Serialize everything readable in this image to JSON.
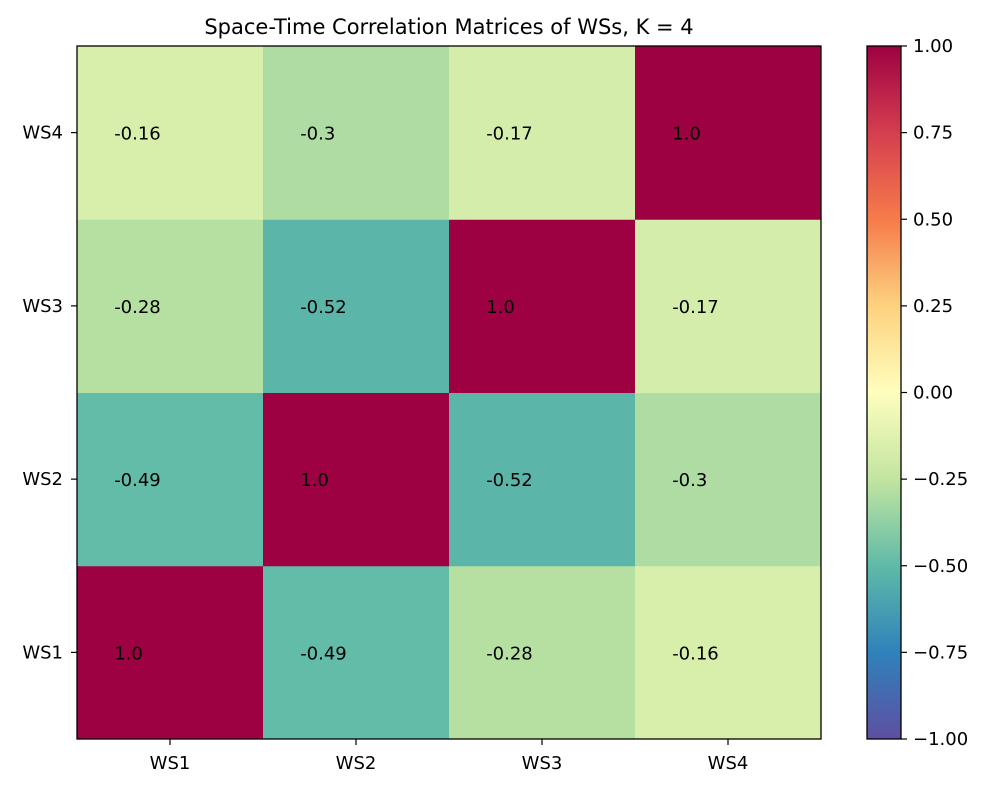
{
  "chart_data": {
    "type": "heatmap",
    "title": "Space-Time Correlation Matrices of WSs, K = 4",
    "xlabel": "",
    "ylabel": "",
    "x_categories": [
      "WS1",
      "WS2",
      "WS3",
      "WS4"
    ],
    "y_categories": [
      "WS1",
      "WS2",
      "WS3",
      "WS4"
    ],
    "values": [
      [
        1.0,
        -0.49,
        -0.28,
        -0.16
      ],
      [
        -0.49,
        1.0,
        -0.52,
        -0.3
      ],
      [
        -0.28,
        -0.52,
        1.0,
        -0.17
      ],
      [
        -0.16,
        -0.3,
        -0.17,
        1.0
      ]
    ],
    "cell_labels": [
      [
        "1.0",
        "-0.49",
        "-0.28",
        "-0.16"
      ],
      [
        "-0.49",
        "1.0",
        "-0.52",
        "-0.3"
      ],
      [
        "-0.28",
        "-0.52",
        "1.0",
        "-0.17"
      ],
      [
        "-0.16",
        "-0.3",
        "-0.17",
        "1.0"
      ]
    ],
    "y_order": "WS1 at bottom, WS4 at top",
    "colormap": "Spectral_r",
    "vmin": -1.0,
    "vmax": 1.0,
    "colorbar_ticks": [
      1.0,
      0.75,
      0.5,
      0.25,
      0.0,
      -0.25,
      -0.5,
      -0.75,
      -1.0
    ],
    "colorbar_tick_labels": [
      "1.00",
      "0.75",
      "0.50",
      "0.25",
      "0.00",
      "−0.25",
      "−0.50",
      "−0.75",
      "−1.00"
    ],
    "grid": false,
    "legend": "colorbar-right"
  }
}
